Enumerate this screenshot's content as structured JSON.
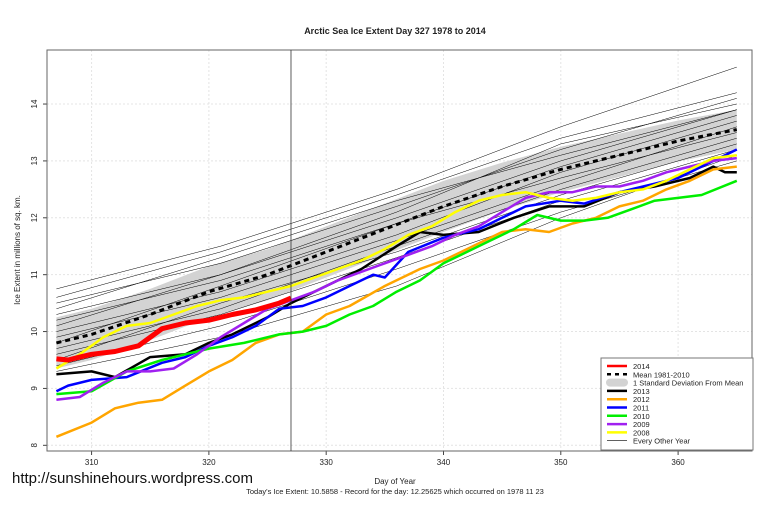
{
  "chart_data": {
    "type": "line",
    "title": "Arctic Sea Ice Extent Day 327 1978 to 2014",
    "xlabel": "Day of Year",
    "ylabel": "Ice Extent in millions of sq. km.",
    "caption": "Today's Ice Extent: 10.5858  - Record for the day: 12.25625 which occurred on 1978 11 23",
    "watermark": "http://sunshinehours.wordpress.com",
    "xlim": [
      306.2,
      366.3
    ],
    "ylim": [
      7.9,
      14.95
    ],
    "xticks": [
      310,
      320,
      330,
      340,
      350,
      360
    ],
    "yticks": [
      8,
      9,
      10,
      11,
      12,
      13,
      14
    ],
    "current_day": 327,
    "grid": true,
    "legend_position": "bottom-right",
    "mean": {
      "name": "Mean 1981-2010",
      "x": [
        307,
        310,
        315,
        320,
        325,
        330,
        335,
        340,
        345,
        350,
        355,
        360,
        365
      ],
      "y": [
        9.8,
        9.95,
        10.3,
        10.7,
        11.0,
        11.4,
        11.8,
        12.2,
        12.55,
        12.85,
        13.1,
        13.35,
        13.55
      ]
    },
    "sd_band": {
      "name": "1 Standard Deviation From Mean",
      "sd": [
        0.45,
        0.45,
        0.45,
        0.45,
        0.45,
        0.45,
        0.45,
        0.45,
        0.42,
        0.4,
        0.38,
        0.36,
        0.35
      ],
      "color": "#d3d3d3"
    },
    "series": [
      {
        "name": "2013",
        "color": "#000000",
        "x": [
          307,
          310,
          312,
          315,
          318,
          320,
          322,
          325,
          327,
          330,
          333,
          336,
          338,
          340,
          343,
          346,
          349,
          352,
          355,
          358,
          361,
          363,
          364,
          365
        ],
        "y": [
          9.25,
          9.3,
          9.2,
          9.55,
          9.6,
          9.8,
          9.95,
          10.25,
          10.5,
          10.8,
          11.1,
          11.5,
          11.75,
          11.7,
          11.75,
          12.0,
          12.2,
          12.2,
          12.45,
          12.55,
          12.7,
          12.9,
          12.8,
          12.8
        ]
      },
      {
        "name": "2012",
        "color": "#ffa500",
        "x": [
          307,
          310,
          312,
          314,
          316,
          318,
          320,
          322,
          324,
          326,
          328,
          330,
          332,
          335,
          338,
          340,
          342,
          345,
          347,
          349,
          351,
          353,
          355,
          357,
          359,
          361,
          363,
          365
        ],
        "y": [
          8.15,
          8.4,
          8.65,
          8.75,
          8.8,
          9.05,
          9.3,
          9.5,
          9.8,
          9.95,
          10.0,
          10.3,
          10.45,
          10.8,
          11.1,
          11.25,
          11.45,
          11.75,
          11.8,
          11.75,
          11.9,
          12.0,
          12.2,
          12.3,
          12.5,
          12.65,
          12.85,
          12.9
        ]
      },
      {
        "name": "2011",
        "color": "#0000ff",
        "x": [
          307,
          308,
          310,
          313,
          316,
          318,
          320,
          322,
          324,
          326,
          328,
          330,
          332,
          334,
          335,
          337,
          340,
          343,
          345,
          347,
          350,
          352,
          355,
          358,
          360,
          362,
          365
        ],
        "y": [
          8.95,
          9.05,
          9.15,
          9.2,
          9.45,
          9.55,
          9.75,
          9.9,
          10.1,
          10.4,
          10.45,
          10.6,
          10.8,
          11.0,
          10.95,
          11.4,
          11.65,
          11.8,
          12.0,
          12.2,
          12.3,
          12.25,
          12.45,
          12.6,
          12.7,
          12.9,
          13.2
        ]
      },
      {
        "name": "2010",
        "color": "#00ee00",
        "x": [
          307,
          310,
          313,
          316,
          318,
          320,
          323,
          326,
          328,
          330,
          332,
          334,
          336,
          338,
          340,
          342,
          344,
          346,
          348,
          350,
          352,
          354,
          356,
          358,
          360,
          362,
          365
        ],
        "y": [
          8.9,
          8.95,
          9.3,
          9.5,
          9.6,
          9.7,
          9.8,
          9.95,
          10.0,
          10.1,
          10.3,
          10.45,
          10.7,
          10.9,
          11.2,
          11.4,
          11.6,
          11.8,
          12.05,
          11.95,
          11.95,
          12.0,
          12.15,
          12.3,
          12.35,
          12.4,
          12.65
        ]
      },
      {
        "name": "2009",
        "color": "#a020f0",
        "x": [
          307,
          309,
          311,
          313,
          315,
          317,
          319,
          321,
          323,
          325,
          327,
          329,
          331,
          333,
          335,
          337,
          339,
          341,
          343,
          345,
          347,
          349,
          351,
          353,
          355,
          357,
          359,
          361,
          363,
          365
        ],
        "y": [
          8.8,
          8.85,
          9.1,
          9.3,
          9.3,
          9.35,
          9.6,
          9.9,
          10.15,
          10.4,
          10.55,
          10.7,
          10.9,
          11.05,
          11.2,
          11.35,
          11.5,
          11.7,
          11.85,
          12.1,
          12.35,
          12.45,
          12.45,
          12.55,
          12.55,
          12.65,
          12.8,
          12.9,
          13.0,
          13.05
        ]
      },
      {
        "name": "2008",
        "color": "#ffff00",
        "x": [
          307,
          309,
          311,
          313,
          315,
          317,
          319,
          321,
          323,
          325,
          327,
          329,
          331,
          333,
          335,
          337,
          339,
          341,
          343,
          345,
          347,
          349,
          351,
          353,
          355,
          357,
          359,
          361,
          363,
          365
        ],
        "y": [
          9.35,
          9.6,
          9.9,
          10.1,
          10.15,
          10.3,
          10.45,
          10.55,
          10.6,
          10.7,
          10.8,
          10.95,
          11.1,
          11.25,
          11.45,
          11.7,
          11.85,
          12.1,
          12.3,
          12.4,
          12.45,
          12.35,
          12.3,
          12.35,
          12.45,
          12.5,
          12.65,
          12.85,
          13.05,
          13.1
        ]
      },
      {
        "name": "2014",
        "color": "#ff0000",
        "x": [
          307,
          308,
          309,
          310,
          312,
          314,
          316,
          318,
          320,
          322,
          324,
          326,
          327
        ],
        "y": [
          9.52,
          9.5,
          9.55,
          9.6,
          9.65,
          9.75,
          10.05,
          10.15,
          10.2,
          10.3,
          10.38,
          10.5,
          10.59
        ]
      }
    ],
    "other_years": {
      "name": "Every Other Year",
      "color": "#000000",
      "x": [
        307,
        321,
        336,
        350,
        365
      ],
      "lines": [
        [
          10.75,
          11.5,
          12.5,
          13.6,
          14.65
        ],
        [
          10.6,
          11.4,
          12.4,
          13.4,
          14.2
        ],
        [
          10.5,
          11.2,
          12.2,
          13.2,
          14.1
        ],
        [
          10.3,
          11.0,
          12.0,
          13.0,
          13.9
        ],
        [
          10.2,
          10.9,
          11.9,
          12.9,
          13.8
        ],
        [
          10.0,
          10.7,
          11.7,
          12.8,
          13.7
        ],
        [
          9.9,
          10.6,
          11.6,
          12.6,
          13.6
        ],
        [
          9.7,
          10.4,
          11.5,
          12.5,
          13.4
        ],
        [
          9.6,
          10.3,
          11.3,
          12.3,
          13.2
        ],
        [
          9.4,
          10.1,
          11.1,
          12.1,
          13.0
        ],
        [
          10.1,
          11.0,
          12.1,
          13.3,
          14.0
        ],
        [
          9.8,
          10.8,
          11.9,
          12.7,
          13.5
        ],
        [
          9.3,
          9.9,
          10.8,
          12.0,
          13.1
        ],
        [
          10.4,
          11.3,
          12.3,
          13.1,
          13.9
        ],
        [
          9.5,
          10.5,
          11.4,
          12.4,
          13.3
        ]
      ]
    }
  }
}
